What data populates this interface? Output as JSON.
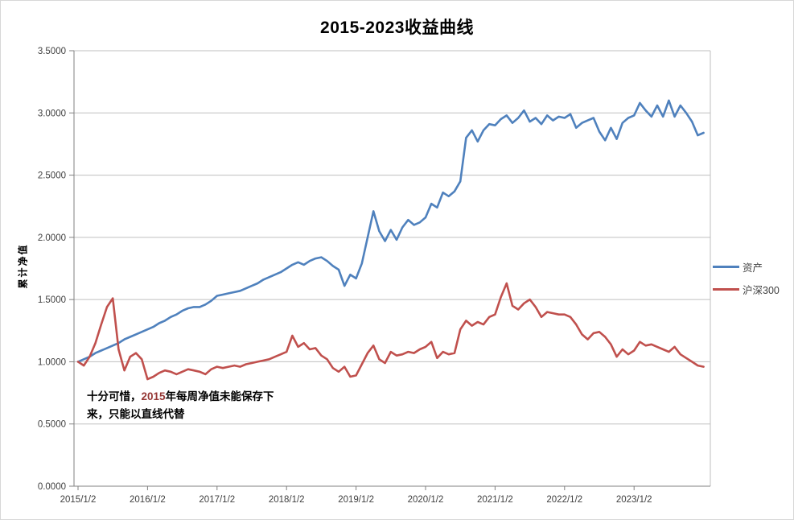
{
  "title": "2015-2023收益曲线",
  "y_axis": {
    "title": "累计净值",
    "tick_labels": [
      "0.0000",
      "0.5000",
      "1.0000",
      "1.5000",
      "2.0000",
      "2.5000",
      "3.0000",
      "3.5000"
    ]
  },
  "x_axis": {
    "tick_labels": [
      "2015/1/2",
      "2016/1/2",
      "2017/1/2",
      "2018/1/2",
      "2019/1/2",
      "2020/1/2",
      "2021/1/2",
      "2022/1/2",
      "2023/1/2"
    ]
  },
  "legend": {
    "position": "right",
    "items": [
      {
        "label": "资产",
        "color": "#4F81BD"
      },
      {
        "label": "沪深300",
        "color": "#C0504D"
      }
    ]
  },
  "annotation": {
    "part1": "十分可惜，",
    "year": "2015",
    "part2": "年每周净值未能保存下来，只能以直线代替",
    "year_color": "#953735"
  },
  "colors": {
    "gridline": "#BFBFBF",
    "axis_line": "#808080",
    "tick_text": "#404040"
  },
  "chart_data": {
    "type": "line",
    "title": "2015-2023收益曲线",
    "xlabel": "",
    "ylabel": "累计净值",
    "ylim": [
      0,
      3.5
    ],
    "y_tick_step": 0.5,
    "grid": "horizontal",
    "legend_position": "right",
    "x_tick_labels": [
      "2015/1/2",
      "2016/1/2",
      "2017/1/2",
      "2018/1/2",
      "2019/1/2",
      "2020/1/2",
      "2021/1/2",
      "2022/1/2",
      "2023/1/2"
    ],
    "x_start_year": 2015.0,
    "x_step_years": 0.083333,
    "n_points": 109,
    "sampling_note": "weekly curve read from pixels at ~monthly resolution; 2015 segment of 资产 is a straight line per annotation",
    "series": [
      {
        "name": "资产",
        "color": "#4F81BD",
        "values": [
          1.0,
          1.02,
          1.04,
          1.07,
          1.09,
          1.11,
          1.13,
          1.15,
          1.18,
          1.2,
          1.22,
          1.24,
          1.26,
          1.28,
          1.31,
          1.33,
          1.36,
          1.38,
          1.41,
          1.43,
          1.44,
          1.44,
          1.46,
          1.49,
          1.53,
          1.54,
          1.55,
          1.56,
          1.57,
          1.59,
          1.61,
          1.63,
          1.66,
          1.68,
          1.7,
          1.72,
          1.75,
          1.78,
          1.8,
          1.78,
          1.81,
          1.83,
          1.84,
          1.81,
          1.77,
          1.74,
          1.61,
          1.7,
          1.67,
          1.79,
          2.0,
          2.21,
          2.05,
          1.97,
          2.06,
          1.98,
          2.08,
          2.14,
          2.1,
          2.12,
          2.16,
          2.27,
          2.24,
          2.36,
          2.33,
          2.37,
          2.45,
          2.8,
          2.86,
          2.77,
          2.86,
          2.91,
          2.9,
          2.95,
          2.98,
          2.92,
          2.96,
          3.02,
          2.93,
          2.96,
          2.91,
          2.98,
          2.94,
          2.97,
          2.96,
          2.99,
          2.88,
          2.92,
          2.94,
          2.96,
          2.85,
          2.78,
          2.88,
          2.79,
          2.92,
          2.96,
          2.98,
          3.08,
          3.02,
          2.97,
          3.06,
          2.97,
          3.1,
          2.97,
          3.06,
          3.0,
          2.93,
          2.82,
          2.84
        ]
      },
      {
        "name": "沪深300",
        "color": "#C0504D",
        "values": [
          1.0,
          0.97,
          1.04,
          1.15,
          1.3,
          1.44,
          1.51,
          1.1,
          0.93,
          1.04,
          1.07,
          1.02,
          0.86,
          0.88,
          0.91,
          0.93,
          0.92,
          0.9,
          0.92,
          0.94,
          0.93,
          0.92,
          0.9,
          0.94,
          0.96,
          0.95,
          0.96,
          0.97,
          0.96,
          0.98,
          0.99,
          1.0,
          1.01,
          1.02,
          1.04,
          1.06,
          1.08,
          1.21,
          1.12,
          1.15,
          1.1,
          1.11,
          1.05,
          1.02,
          0.95,
          0.92,
          0.96,
          0.88,
          0.89,
          0.98,
          1.07,
          1.13,
          1.02,
          0.99,
          1.08,
          1.05,
          1.06,
          1.08,
          1.07,
          1.1,
          1.12,
          1.16,
          1.03,
          1.08,
          1.06,
          1.07,
          1.26,
          1.33,
          1.29,
          1.32,
          1.3,
          1.36,
          1.38,
          1.52,
          1.63,
          1.45,
          1.42,
          1.47,
          1.5,
          1.44,
          1.36,
          1.4,
          1.39,
          1.38,
          1.38,
          1.36,
          1.3,
          1.22,
          1.18,
          1.23,
          1.24,
          1.2,
          1.14,
          1.04,
          1.1,
          1.06,
          1.09,
          1.16,
          1.13,
          1.14,
          1.12,
          1.1,
          1.08,
          1.12,
          1.06,
          1.03,
          1.0,
          0.97,
          0.96
        ]
      }
    ],
    "annotation_text": "十分可惜，2015年每周净值未能保存下来，只能以直线代替"
  }
}
